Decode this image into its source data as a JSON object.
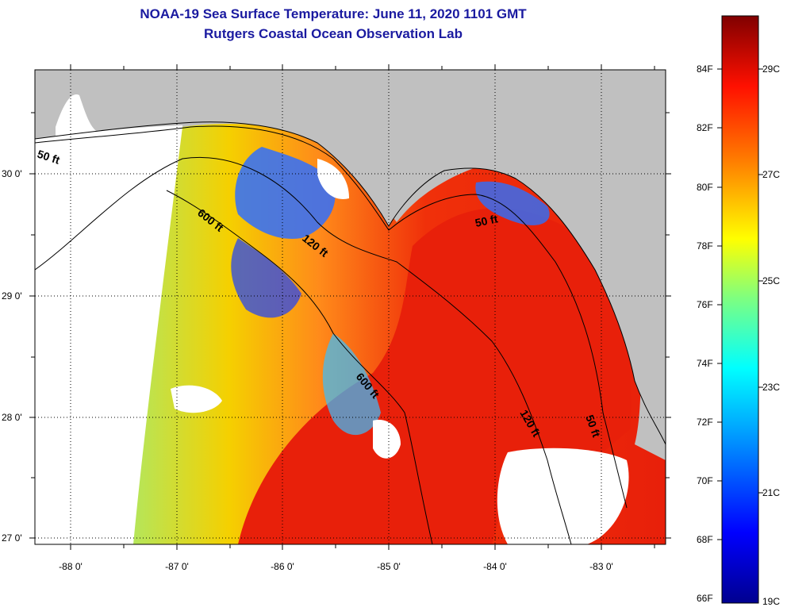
{
  "title": {
    "line1": "NOAA-19 Sea Surface Temperature:  June 11, 2020 1101 GMT",
    "line2": "Rutgers Coastal Ocean Observation Lab"
  },
  "map": {
    "lat_labels": [
      "30 0'",
      "29 0'",
      "28 0'",
      "27 0'"
    ],
    "lon_labels": [
      "-88 0'",
      "-87 0'",
      "-86 0'",
      "-85 0'",
      "-84 0'",
      "-83 0'"
    ],
    "contour_labels": [
      "50 ft",
      "600 ft",
      "120 ft",
      "50 ft",
      "600 ft",
      "120 ft",
      "50 ft"
    ],
    "colors": {
      "land": "#c0c0c0",
      "cloud": "#ffffff",
      "warm": "#e8200a",
      "cool": "#f5d000"
    }
  },
  "colorbar": {
    "fahrenheit_labels": [
      "84F",
      "82F",
      "80F",
      "78F",
      "76F",
      "74F",
      "72F",
      "70F",
      "68F",
      "66F"
    ],
    "celsius_labels": [
      "29C",
      "27C",
      "25C",
      "23C",
      "21C",
      "19C"
    ]
  }
}
